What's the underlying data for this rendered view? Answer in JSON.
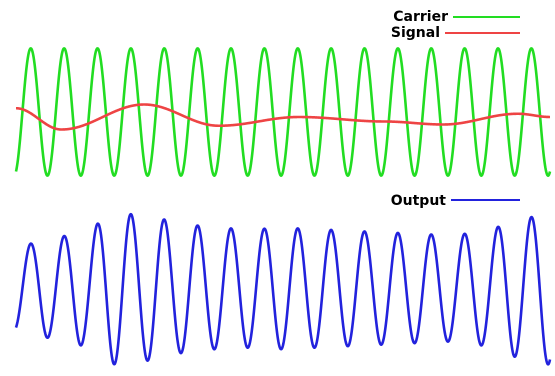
{
  "chart_data": [
    {
      "type": "line",
      "legend_position": "top-right",
      "grid": false,
      "axes_visible": false,
      "series": [
        {
          "name": "Carrier",
          "color": "#22dd22",
          "form": "sine",
          "cycles": 16,
          "amplitude": 1.0,
          "ylim": [
            -1.1,
            1.1
          ]
        },
        {
          "name": "Signal",
          "color": "#ee4444",
          "form": "slow-wave",
          "points": [
            [
              0,
              0.15
            ],
            [
              0.085,
              -0.7
            ],
            [
              0.24,
              0.3
            ],
            [
              0.38,
              -0.55
            ],
            [
              0.53,
              -0.2
            ],
            [
              0.69,
              -0.38
            ],
            [
              0.8,
              -0.5
            ],
            [
              0.94,
              -0.07
            ],
            [
              1.0,
              -0.2
            ]
          ],
          "ylim": [
            -2.8,
            2.8
          ]
        }
      ]
    },
    {
      "type": "line",
      "legend_position": "top-right",
      "grid": false,
      "axes_visible": false,
      "series": [
        {
          "name": "Output",
          "color": "#2222dd",
          "form": "modulated-sine",
          "cycles": 16,
          "envelope": [
            0.55,
            0.65,
            0.75,
            1.0,
            0.95,
            0.85,
            0.8,
            0.78,
            0.8,
            0.78,
            0.76,
            0.74,
            0.72,
            0.7,
            0.75,
            0.9,
            1.0
          ],
          "ylim": [
            -1.1,
            1.1
          ]
        }
      ]
    }
  ]
}
